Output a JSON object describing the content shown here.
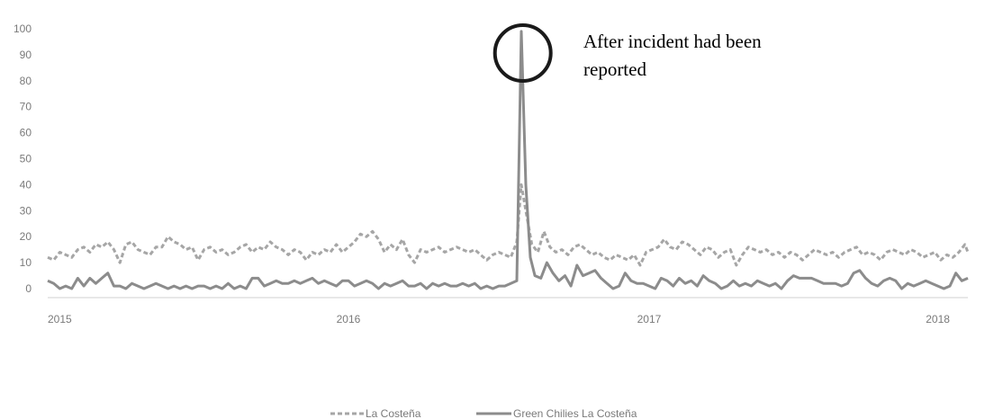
{
  "chart_data": {
    "type": "line",
    "title": "",
    "xlabel": "",
    "ylabel": "",
    "ylim": [
      0,
      100
    ],
    "yticks": [
      0,
      10,
      20,
      30,
      40,
      50,
      60,
      70,
      80,
      90,
      100
    ],
    "xlim": [
      2015,
      2018.06
    ],
    "xticks": [
      "2015",
      "2016",
      "2017",
      "2018"
    ],
    "grid": false,
    "legend_position": "bottom-center",
    "annotation": {
      "lines": [
        "After incident had been",
        "reported"
      ],
      "target": {
        "x": 2016.58,
        "y": 100
      },
      "marker": "circle"
    },
    "series": [
      {
        "name": "La Costeña",
        "style": "dashed",
        "color": "#a6a6a6",
        "points": [
          [
            2015.0,
            12
          ],
          [
            2015.02,
            11
          ],
          [
            2015.04,
            14
          ],
          [
            2015.06,
            13
          ],
          [
            2015.08,
            12
          ],
          [
            2015.1,
            15
          ],
          [
            2015.12,
            16
          ],
          [
            2015.14,
            14
          ],
          [
            2015.16,
            17
          ],
          [
            2015.18,
            16
          ],
          [
            2015.2,
            18
          ],
          [
            2015.22,
            15
          ],
          [
            2015.24,
            10
          ],
          [
            2015.26,
            17
          ],
          [
            2015.28,
            18
          ],
          [
            2015.3,
            15
          ],
          [
            2015.32,
            14
          ],
          [
            2015.34,
            13
          ],
          [
            2015.36,
            16
          ],
          [
            2015.38,
            16
          ],
          [
            2015.4,
            20
          ],
          [
            2015.42,
            18
          ],
          [
            2015.44,
            17
          ],
          [
            2015.46,
            15
          ],
          [
            2015.48,
            16
          ],
          [
            2015.5,
            11
          ],
          [
            2015.52,
            15
          ],
          [
            2015.54,
            16
          ],
          [
            2015.56,
            14
          ],
          [
            2015.58,
            15
          ],
          [
            2015.6,
            13
          ],
          [
            2015.62,
            14
          ],
          [
            2015.64,
            16
          ],
          [
            2015.66,
            17
          ],
          [
            2015.68,
            14
          ],
          [
            2015.7,
            16
          ],
          [
            2015.72,
            15
          ],
          [
            2015.74,
            18
          ],
          [
            2015.76,
            16
          ],
          [
            2015.78,
            15
          ],
          [
            2015.8,
            13
          ],
          [
            2015.82,
            15
          ],
          [
            2015.84,
            14
          ],
          [
            2015.86,
            11
          ],
          [
            2015.88,
            14
          ],
          [
            2015.9,
            13
          ],
          [
            2015.92,
            15
          ],
          [
            2015.94,
            14
          ],
          [
            2015.96,
            17
          ],
          [
            2015.98,
            14
          ],
          [
            2016.0,
            16
          ],
          [
            2016.02,
            18
          ],
          [
            2016.04,
            21
          ],
          [
            2016.06,
            20
          ],
          [
            2016.08,
            22
          ],
          [
            2016.1,
            19
          ],
          [
            2016.12,
            14
          ],
          [
            2016.14,
            17
          ],
          [
            2016.16,
            15
          ],
          [
            2016.18,
            19
          ],
          [
            2016.2,
            13
          ],
          [
            2016.22,
            10
          ],
          [
            2016.24,
            15
          ],
          [
            2016.26,
            14
          ],
          [
            2016.28,
            15
          ],
          [
            2016.3,
            16
          ],
          [
            2016.32,
            14
          ],
          [
            2016.34,
            15
          ],
          [
            2016.36,
            16
          ],
          [
            2016.38,
            15
          ],
          [
            2016.4,
            14
          ],
          [
            2016.42,
            15
          ],
          [
            2016.44,
            13
          ],
          [
            2016.46,
            11
          ],
          [
            2016.48,
            13
          ],
          [
            2016.5,
            14
          ],
          [
            2016.52,
            13
          ],
          [
            2016.54,
            12
          ],
          [
            2016.56,
            18
          ],
          [
            2016.575,
            40
          ],
          [
            2016.59,
            30
          ],
          [
            2016.61,
            17
          ],
          [
            2016.63,
            14
          ],
          [
            2016.65,
            22
          ],
          [
            2016.67,
            16
          ],
          [
            2016.69,
            14
          ],
          [
            2016.71,
            15
          ],
          [
            2016.73,
            13
          ],
          [
            2016.75,
            16
          ],
          [
            2016.77,
            17
          ],
          [
            2016.79,
            15
          ],
          [
            2016.81,
            13
          ],
          [
            2016.83,
            14
          ],
          [
            2016.85,
            12
          ],
          [
            2016.87,
            11
          ],
          [
            2016.89,
            13
          ],
          [
            2016.91,
            12
          ],
          [
            2016.93,
            11
          ],
          [
            2016.95,
            13
          ],
          [
            2016.97,
            9
          ],
          [
            2016.99,
            14
          ],
          [
            2017.01,
            15
          ],
          [
            2017.03,
            16
          ],
          [
            2017.05,
            19
          ],
          [
            2017.07,
            16
          ],
          [
            2017.09,
            15
          ],
          [
            2017.11,
            18
          ],
          [
            2017.13,
            17
          ],
          [
            2017.15,
            15
          ],
          [
            2017.17,
            13
          ],
          [
            2017.19,
            16
          ],
          [
            2017.21,
            15
          ],
          [
            2017.23,
            12
          ],
          [
            2017.25,
            14
          ],
          [
            2017.27,
            15
          ],
          [
            2017.29,
            9
          ],
          [
            2017.31,
            13
          ],
          [
            2017.33,
            16
          ],
          [
            2017.35,
            15
          ],
          [
            2017.37,
            14
          ],
          [
            2017.39,
            15
          ],
          [
            2017.41,
            13
          ],
          [
            2017.43,
            14
          ],
          [
            2017.45,
            12
          ],
          [
            2017.47,
            14
          ],
          [
            2017.49,
            13
          ],
          [
            2017.51,
            11
          ],
          [
            2017.53,
            13
          ],
          [
            2017.55,
            15
          ],
          [
            2017.57,
            14
          ],
          [
            2017.59,
            13
          ],
          [
            2017.61,
            14
          ],
          [
            2017.63,
            12
          ],
          [
            2017.65,
            14
          ],
          [
            2017.67,
            15
          ],
          [
            2017.69,
            16
          ],
          [
            2017.71,
            13
          ],
          [
            2017.73,
            14
          ],
          [
            2017.75,
            13
          ],
          [
            2017.77,
            11
          ],
          [
            2017.79,
            14
          ],
          [
            2017.81,
            15
          ],
          [
            2017.83,
            14
          ],
          [
            2017.85,
            13
          ],
          [
            2017.87,
            15
          ],
          [
            2017.89,
            14
          ],
          [
            2017.91,
            12
          ],
          [
            2017.93,
            13
          ],
          [
            2017.95,
            14
          ],
          [
            2017.97,
            11
          ],
          [
            2017.99,
            13
          ],
          [
            2018.01,
            12
          ],
          [
            2018.03,
            14
          ],
          [
            2018.05,
            17
          ],
          [
            2018.06,
            14
          ]
        ]
      },
      {
        "name": "Green Chilies La Costeña",
        "style": "solid",
        "color": "#8c8c8c",
        "points": [
          [
            2015.0,
            3
          ],
          [
            2015.02,
            2
          ],
          [
            2015.04,
            0
          ],
          [
            2015.06,
            1
          ],
          [
            2015.08,
            0
          ],
          [
            2015.1,
            4
          ],
          [
            2015.12,
            1
          ],
          [
            2015.14,
            4
          ],
          [
            2015.16,
            2
          ],
          [
            2015.18,
            4
          ],
          [
            2015.2,
            6
          ],
          [
            2015.22,
            1
          ],
          [
            2015.24,
            1
          ],
          [
            2015.26,
            0
          ],
          [
            2015.28,
            2
          ],
          [
            2015.3,
            1
          ],
          [
            2015.32,
            0
          ],
          [
            2015.34,
            1
          ],
          [
            2015.36,
            2
          ],
          [
            2015.38,
            1
          ],
          [
            2015.4,
            0
          ],
          [
            2015.42,
            1
          ],
          [
            2015.44,
            0
          ],
          [
            2015.46,
            1
          ],
          [
            2015.48,
            0
          ],
          [
            2015.5,
            1
          ],
          [
            2015.52,
            1
          ],
          [
            2015.54,
            0
          ],
          [
            2015.56,
            1
          ],
          [
            2015.58,
            0
          ],
          [
            2015.6,
            2
          ],
          [
            2015.62,
            0
          ],
          [
            2015.64,
            1
          ],
          [
            2015.66,
            0
          ],
          [
            2015.68,
            4
          ],
          [
            2015.7,
            4
          ],
          [
            2015.72,
            1
          ],
          [
            2015.74,
            2
          ],
          [
            2015.76,
            3
          ],
          [
            2015.78,
            2
          ],
          [
            2015.8,
            2
          ],
          [
            2015.82,
            3
          ],
          [
            2015.84,
            2
          ],
          [
            2015.86,
            3
          ],
          [
            2015.88,
            4
          ],
          [
            2015.9,
            2
          ],
          [
            2015.92,
            3
          ],
          [
            2015.94,
            2
          ],
          [
            2015.96,
            1
          ],
          [
            2015.98,
            3
          ],
          [
            2016.0,
            3
          ],
          [
            2016.02,
            1
          ],
          [
            2016.04,
            2
          ],
          [
            2016.06,
            3
          ],
          [
            2016.08,
            2
          ],
          [
            2016.1,
            0
          ],
          [
            2016.12,
            2
          ],
          [
            2016.14,
            1
          ],
          [
            2016.16,
            2
          ],
          [
            2016.18,
            3
          ],
          [
            2016.2,
            1
          ],
          [
            2016.22,
            1
          ],
          [
            2016.24,
            2
          ],
          [
            2016.26,
            0
          ],
          [
            2016.28,
            2
          ],
          [
            2016.3,
            1
          ],
          [
            2016.32,
            2
          ],
          [
            2016.34,
            1
          ],
          [
            2016.36,
            1
          ],
          [
            2016.38,
            2
          ],
          [
            2016.4,
            1
          ],
          [
            2016.42,
            2
          ],
          [
            2016.44,
            0
          ],
          [
            2016.46,
            1
          ],
          [
            2016.48,
            0
          ],
          [
            2016.5,
            1
          ],
          [
            2016.52,
            1
          ],
          [
            2016.54,
            2
          ],
          [
            2016.56,
            3
          ],
          [
            2016.575,
            99
          ],
          [
            2016.59,
            40
          ],
          [
            2016.605,
            12
          ],
          [
            2016.62,
            5
          ],
          [
            2016.64,
            4
          ],
          [
            2016.66,
            10
          ],
          [
            2016.68,
            6
          ],
          [
            2016.7,
            3
          ],
          [
            2016.72,
            5
          ],
          [
            2016.74,
            1
          ],
          [
            2016.76,
            9
          ],
          [
            2016.78,
            5
          ],
          [
            2016.8,
            6
          ],
          [
            2016.82,
            7
          ],
          [
            2016.84,
            4
          ],
          [
            2016.86,
            2
          ],
          [
            2016.88,
            0
          ],
          [
            2016.9,
            1
          ],
          [
            2016.92,
            6
          ],
          [
            2016.94,
            3
          ],
          [
            2016.96,
            2
          ],
          [
            2016.98,
            2
          ],
          [
            2017.0,
            1
          ],
          [
            2017.02,
            0
          ],
          [
            2017.04,
            4
          ],
          [
            2017.06,
            3
          ],
          [
            2017.08,
            1
          ],
          [
            2017.1,
            4
          ],
          [
            2017.12,
            2
          ],
          [
            2017.14,
            3
          ],
          [
            2017.16,
            1
          ],
          [
            2017.18,
            5
          ],
          [
            2017.2,
            3
          ],
          [
            2017.22,
            2
          ],
          [
            2017.24,
            0
          ],
          [
            2017.26,
            1
          ],
          [
            2017.28,
            3
          ],
          [
            2017.3,
            1
          ],
          [
            2017.32,
            2
          ],
          [
            2017.34,
            1
          ],
          [
            2017.36,
            3
          ],
          [
            2017.38,
            2
          ],
          [
            2017.4,
            1
          ],
          [
            2017.42,
            2
          ],
          [
            2017.44,
            0
          ],
          [
            2017.46,
            3
          ],
          [
            2017.48,
            5
          ],
          [
            2017.5,
            4
          ],
          [
            2017.52,
            4
          ],
          [
            2017.54,
            4
          ],
          [
            2017.56,
            3
          ],
          [
            2017.58,
            2
          ],
          [
            2017.6,
            2
          ],
          [
            2017.62,
            2
          ],
          [
            2017.64,
            1
          ],
          [
            2017.66,
            2
          ],
          [
            2017.68,
            6
          ],
          [
            2017.7,
            7
          ],
          [
            2017.72,
            4
          ],
          [
            2017.74,
            2
          ],
          [
            2017.76,
            1
          ],
          [
            2017.78,
            3
          ],
          [
            2017.8,
            4
          ],
          [
            2017.82,
            3
          ],
          [
            2017.84,
            0
          ],
          [
            2017.86,
            2
          ],
          [
            2017.88,
            1
          ],
          [
            2017.9,
            2
          ],
          [
            2017.92,
            3
          ],
          [
            2017.94,
            2
          ],
          [
            2017.96,
            1
          ],
          [
            2017.98,
            0
          ],
          [
            2018.0,
            1
          ],
          [
            2018.02,
            6
          ],
          [
            2018.04,
            3
          ],
          [
            2018.06,
            4
          ]
        ]
      }
    ]
  }
}
